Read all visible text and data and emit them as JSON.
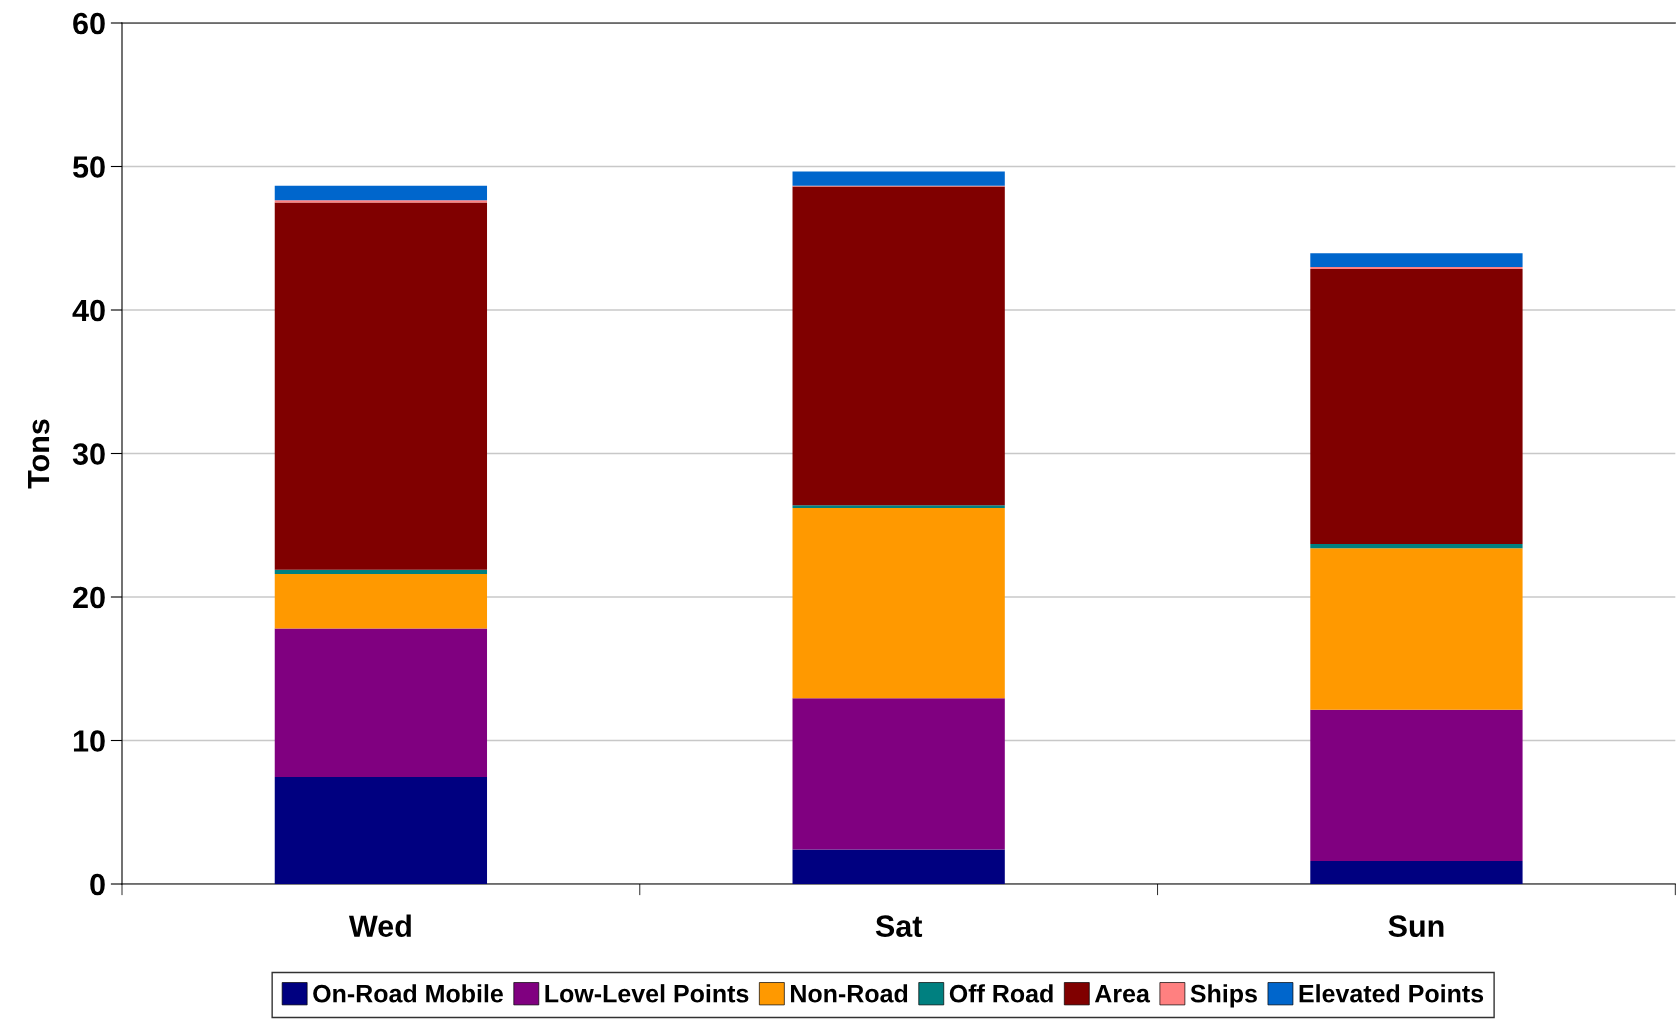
{
  "chart_data": {
    "type": "bar",
    "stacked": true,
    "ylabel": "Tons",
    "categories": [
      "Wed",
      "Sat",
      "Sun"
    ],
    "series": [
      {
        "name": "On-Road Mobile",
        "color": "#000080",
        "values": [
          7.45,
          2.4,
          1.6
        ]
      },
      {
        "name": "Low-Level Points",
        "color": "#800080",
        "values": [
          10.35,
          10.55,
          10.55
        ]
      },
      {
        "name": "Non-Road",
        "color": "#ff9900",
        "values": [
          3.8,
          13.25,
          11.25
        ]
      },
      {
        "name": "Off Road",
        "color": "#008080",
        "values": [
          0.3,
          0.2,
          0.3
        ]
      },
      {
        "name": "Area",
        "color": "#800000",
        "values": [
          25.6,
          22.2,
          19.15
        ]
      },
      {
        "name": "Ships",
        "color": "#ff8080",
        "values": [
          0.15,
          0.05,
          0.15
        ]
      },
      {
        "name": "Elevated Points",
        "color": "#0066cc",
        "values": [
          1.0,
          1.0,
          0.95
        ]
      }
    ],
    "ylim": [
      0,
      60
    ],
    "yticks": [
      0,
      10,
      20,
      30,
      40,
      50,
      60
    ],
    "grid": "y",
    "legend": "bottom"
  }
}
